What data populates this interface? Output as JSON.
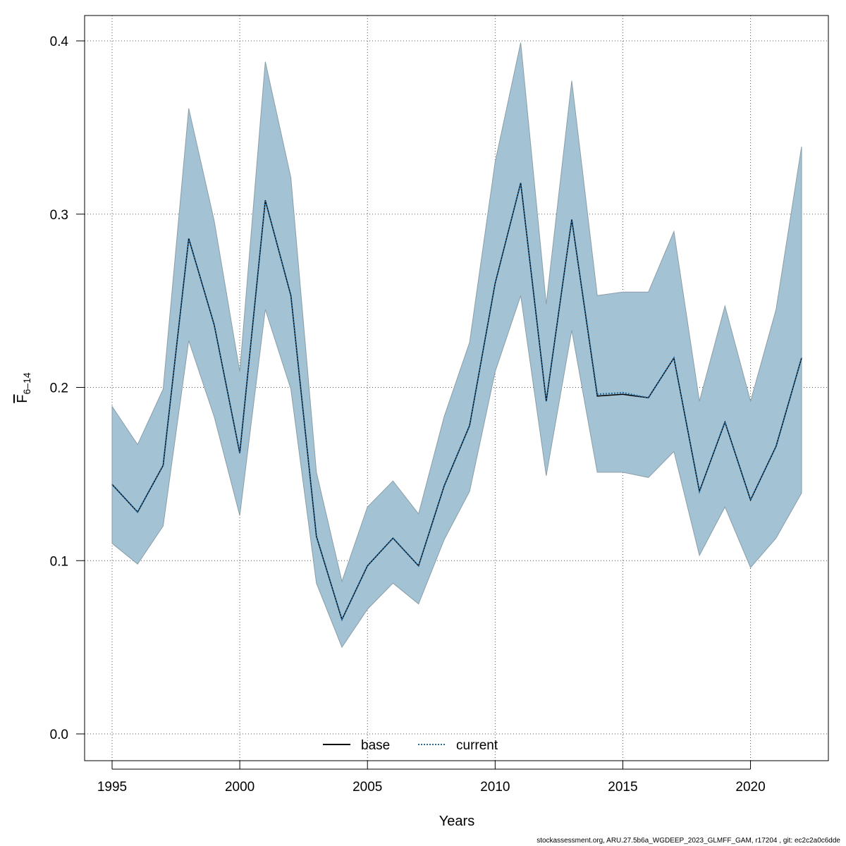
{
  "chart_data": {
    "type": "line",
    "xlabel": "Years",
    "ylabel_main": "F",
    "ylabel_sub": "6–14",
    "xlim": [
      1995,
      2022
    ],
    "ylim": [
      0.0,
      0.4
    ],
    "x_ticks": [
      1995,
      2000,
      2005,
      2010,
      2015,
      2020
    ],
    "y_ticks": [
      "0.0",
      "0.1",
      "0.2",
      "0.3",
      "0.4"
    ],
    "grid": true,
    "legend_placement": "bottom",
    "x": [
      1995,
      1996,
      1997,
      1998,
      1999,
      2000,
      2001,
      2002,
      2003,
      2004,
      2005,
      2006,
      2007,
      2008,
      2009,
      2010,
      2011,
      2012,
      2013,
      2014,
      2015,
      2016,
      2017,
      2018,
      2019,
      2020,
      2021,
      2022
    ],
    "band": {
      "color": "#a3c3d4",
      "upper": [
        0.189,
        0.167,
        0.199,
        0.361,
        0.296,
        0.209,
        0.388,
        0.321,
        0.151,
        0.088,
        0.131,
        0.146,
        0.127,
        0.183,
        0.226,
        0.33,
        0.399,
        0.248,
        0.377,
        0.253,
        0.255,
        0.255,
        0.29,
        0.192,
        0.247,
        0.192,
        0.245,
        0.339
      ],
      "lower": [
        0.11,
        0.098,
        0.12,
        0.227,
        0.183,
        0.126,
        0.245,
        0.199,
        0.087,
        0.05,
        0.072,
        0.087,
        0.075,
        0.112,
        0.14,
        0.209,
        0.253,
        0.149,
        0.233,
        0.151,
        0.151,
        0.148,
        0.163,
        0.103,
        0.131,
        0.096,
        0.113,
        0.139
      ]
    },
    "series": [
      {
        "name": "base",
        "style": "solid",
        "color": "#000000",
        "values": [
          0.144,
          0.128,
          0.155,
          0.286,
          0.236,
          0.162,
          0.308,
          0.253,
          0.114,
          0.066,
          0.097,
          0.113,
          0.097,
          0.143,
          0.178,
          0.26,
          0.318,
          0.192,
          0.297,
          0.195,
          0.196,
          0.194,
          0.217,
          0.14,
          0.18,
          0.135,
          0.166,
          0.217
        ]
      },
      {
        "name": "current",
        "style": "dotted",
        "color": "#1f6aa0",
        "values": [
          0.144,
          0.128,
          0.155,
          0.286,
          0.236,
          0.162,
          0.308,
          0.253,
          0.114,
          0.066,
          0.097,
          0.113,
          0.097,
          0.143,
          0.178,
          0.26,
          0.318,
          0.192,
          0.297,
          0.196,
          0.197,
          0.194,
          0.217,
          0.14,
          0.18,
          0.135,
          0.166,
          0.217
        ]
      }
    ]
  },
  "footer_text": "stockassessment.org, ARU.27.5b6a_WGDEEP_2023_GLMFF_GAM, r17204 , git: ec2c2a0c6dde"
}
